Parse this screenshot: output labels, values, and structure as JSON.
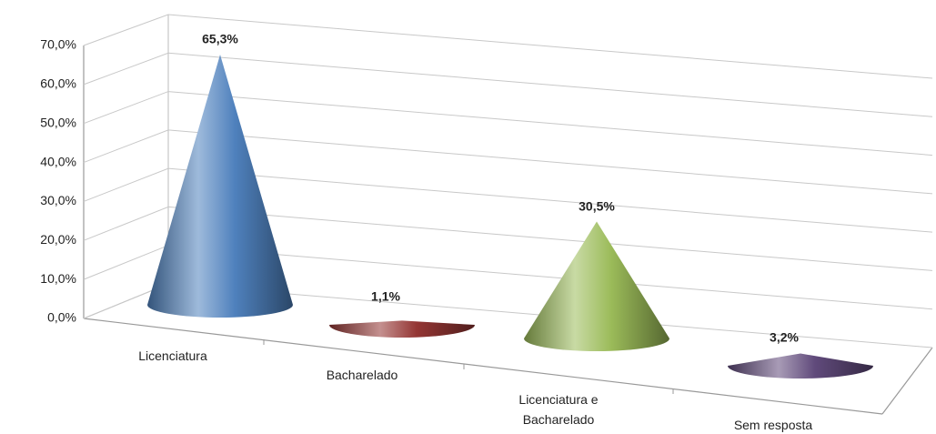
{
  "chart_data": {
    "type": "cone",
    "categories": [
      "Licenciatura",
      "Bacharelado",
      "Licenciatura e\nBacharelado",
      "Sem resposta"
    ],
    "values": [
      65.3,
      1.1,
      30.5,
      3.2
    ],
    "value_labels": [
      "65,3%",
      "1,1%",
      "30,5%",
      "3,2%"
    ],
    "colors": [
      "#4f81bd",
      "#943634",
      "#9bbb59",
      "#604a7b"
    ],
    "ylim": [
      0,
      70
    ],
    "yticks": [
      {
        "value": 0,
        "label": "0,0%"
      },
      {
        "value": 10,
        "label": "10,0%"
      },
      {
        "value": 20,
        "label": "20,0%"
      },
      {
        "value": 30,
        "label": "30,0%"
      },
      {
        "value": 40,
        "label": "40,0%"
      },
      {
        "value": 50,
        "label": "50,0%"
      },
      {
        "value": 60,
        "label": "60,0%"
      },
      {
        "value": 70,
        "label": "70,0%"
      }
    ],
    "grid": true
  }
}
